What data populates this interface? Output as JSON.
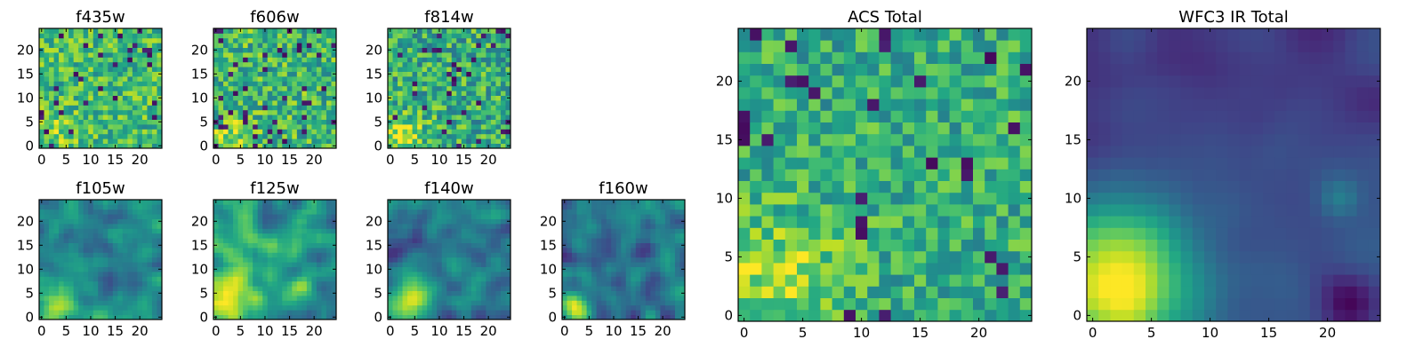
{
  "figure": {
    "description_free": true
  },
  "chart_data": [
    {
      "type": "heatmap",
      "title": "f435w",
      "xlabel": "",
      "ylabel": "",
      "xlim": [
        -0.5,
        24.5
      ],
      "ylim": [
        -0.5,
        24.5
      ],
      "grid_size": [
        25,
        25
      ],
      "xticks": [
        0,
        5,
        10,
        15,
        20
      ],
      "yticks": [
        0,
        5,
        10,
        15,
        20
      ],
      "colormap": "viridis",
      "pattern": {
        "mode": "noise",
        "peak": [
          3,
          3
        ],
        "peak_width": 3.0,
        "peak_amp": 0.15,
        "base": 0.68,
        "noise": 0.22,
        "dark_fraction": 0.05,
        "seed": 11
      }
    },
    {
      "type": "heatmap",
      "title": "f606w",
      "xlabel": "",
      "ylabel": "",
      "xlim": [
        -0.5,
        24.5
      ],
      "ylim": [
        -0.5,
        24.5
      ],
      "grid_size": [
        25,
        25
      ],
      "xticks": [
        0,
        5,
        10,
        15,
        20
      ],
      "yticks": [
        0,
        5,
        10,
        15,
        20
      ],
      "colormap": "viridis",
      "pattern": {
        "mode": "noise",
        "peak": [
          3,
          2
        ],
        "peak_width": 3.0,
        "peak_amp": 0.2,
        "base": 0.66,
        "noise": 0.24,
        "dark_fraction": 0.06,
        "seed": 23
      }
    },
    {
      "type": "heatmap",
      "title": "f814w",
      "xlabel": "",
      "ylabel": "",
      "xlim": [
        -0.5,
        24.5
      ],
      "ylim": [
        -0.5,
        24.5
      ],
      "grid_size": [
        25,
        25
      ],
      "xticks": [
        0,
        5,
        10,
        15,
        20
      ],
      "yticks": [
        0,
        5,
        10,
        15,
        20
      ],
      "colormap": "viridis",
      "pattern": {
        "mode": "noise",
        "peak": [
          3,
          2
        ],
        "peak_width": 3.0,
        "peak_amp": 0.3,
        "base": 0.62,
        "noise": 0.25,
        "dark_fraction": 0.05,
        "seed": 37
      }
    },
    {
      "type": "heatmap",
      "title": "f105w",
      "xlabel": "",
      "ylabel": "",
      "xlim": [
        -0.5,
        24.5
      ],
      "ylim": [
        -0.5,
        24.5
      ],
      "grid_size": [
        25,
        25
      ],
      "xticks": [
        0,
        5,
        10,
        15,
        20
      ],
      "yticks": [
        0,
        5,
        10,
        15,
        20
      ],
      "colormap": "viridis",
      "pattern": {
        "mode": "smooth",
        "peak": [
          3,
          3
        ],
        "peak_width": 3.5,
        "peak_amp": 0.45,
        "base": 0.45,
        "noise": 0.3,
        "dark_fraction": 0.0,
        "seed": 41
      }
    },
    {
      "type": "heatmap",
      "title": "f125w",
      "xlabel": "",
      "ylabel": "",
      "xlim": [
        -0.5,
        24.5
      ],
      "ylim": [
        -0.5,
        24.5
      ],
      "grid_size": [
        25,
        25
      ],
      "xticks": [
        0,
        5,
        10,
        15,
        20
      ],
      "yticks": [
        0,
        5,
        10,
        15,
        20
      ],
      "colormap": "viridis",
      "pattern": {
        "mode": "smooth",
        "peak": [
          3,
          2
        ],
        "peak_width": 4.0,
        "peak_amp": 0.35,
        "base": 0.58,
        "noise": 0.32,
        "dark_fraction": 0.0,
        "seed": 53
      }
    },
    {
      "type": "heatmap",
      "title": "f140w",
      "xlabel": "",
      "ylabel": "",
      "xlim": [
        -0.5,
        24.5
      ],
      "ylim": [
        -0.5,
        24.5
      ],
      "grid_size": [
        25,
        25
      ],
      "xticks": [
        0,
        5,
        10,
        15,
        20
      ],
      "yticks": [
        0,
        5,
        10,
        15,
        20
      ],
      "colormap": "viridis",
      "pattern": {
        "mode": "smooth",
        "peak": [
          3,
          2
        ],
        "peak_width": 3.5,
        "peak_amp": 0.5,
        "base": 0.42,
        "noise": 0.28,
        "dark_fraction": 0.0,
        "seed": 67
      }
    },
    {
      "type": "heatmap",
      "title": "f160w",
      "xlabel": "",
      "ylabel": "",
      "xlim": [
        -0.5,
        24.5
      ],
      "ylim": [
        -0.5,
        24.5
      ],
      "grid_size": [
        25,
        25
      ],
      "xticks": [
        0,
        5,
        10,
        15,
        20
      ],
      "yticks": [
        0,
        5,
        10,
        15,
        20
      ],
      "colormap": "viridis",
      "pattern": {
        "mode": "smooth",
        "peak": [
          2,
          2
        ],
        "peak_width": 2.5,
        "peak_amp": 0.6,
        "base": 0.4,
        "noise": 0.3,
        "dark_fraction": 0.0,
        "seed": 79
      }
    },
    {
      "type": "heatmap",
      "title": "ACS Total",
      "xlabel": "",
      "ylabel": "",
      "xlim": [
        -0.5,
        24.5
      ],
      "ylim": [
        -0.5,
        24.5
      ],
      "grid_size": [
        25,
        25
      ],
      "xticks": [
        0,
        5,
        10,
        15,
        20
      ],
      "yticks": [
        0,
        5,
        10,
        15,
        20
      ],
      "colormap": "viridis",
      "pattern": {
        "mode": "noise",
        "peak": [
          3,
          3
        ],
        "peak_width": 4.0,
        "peak_amp": 0.25,
        "base": 0.62,
        "noise": 0.2,
        "dark_fraction": 0.05,
        "seed": 97
      }
    },
    {
      "type": "heatmap",
      "title": "WFC3 IR Total",
      "xlabel": "",
      "ylabel": "",
      "xlim": [
        -0.5,
        24.5
      ],
      "ylim": [
        -0.5,
        24.5
      ],
      "grid_size": [
        25,
        25
      ],
      "xticks": [
        0,
        5,
        10,
        15,
        20
      ],
      "yticks": [
        0,
        5,
        10,
        15,
        20
      ],
      "colormap": "viridis",
      "pattern": {
        "mode": "galaxy",
        "peak": [
          2,
          3
        ],
        "peak_width": 4.5,
        "peak_amp": 0.75,
        "base": 0.28,
        "noise": 0.1,
        "dark_fraction": 0.0,
        "seed": 113
      }
    }
  ]
}
